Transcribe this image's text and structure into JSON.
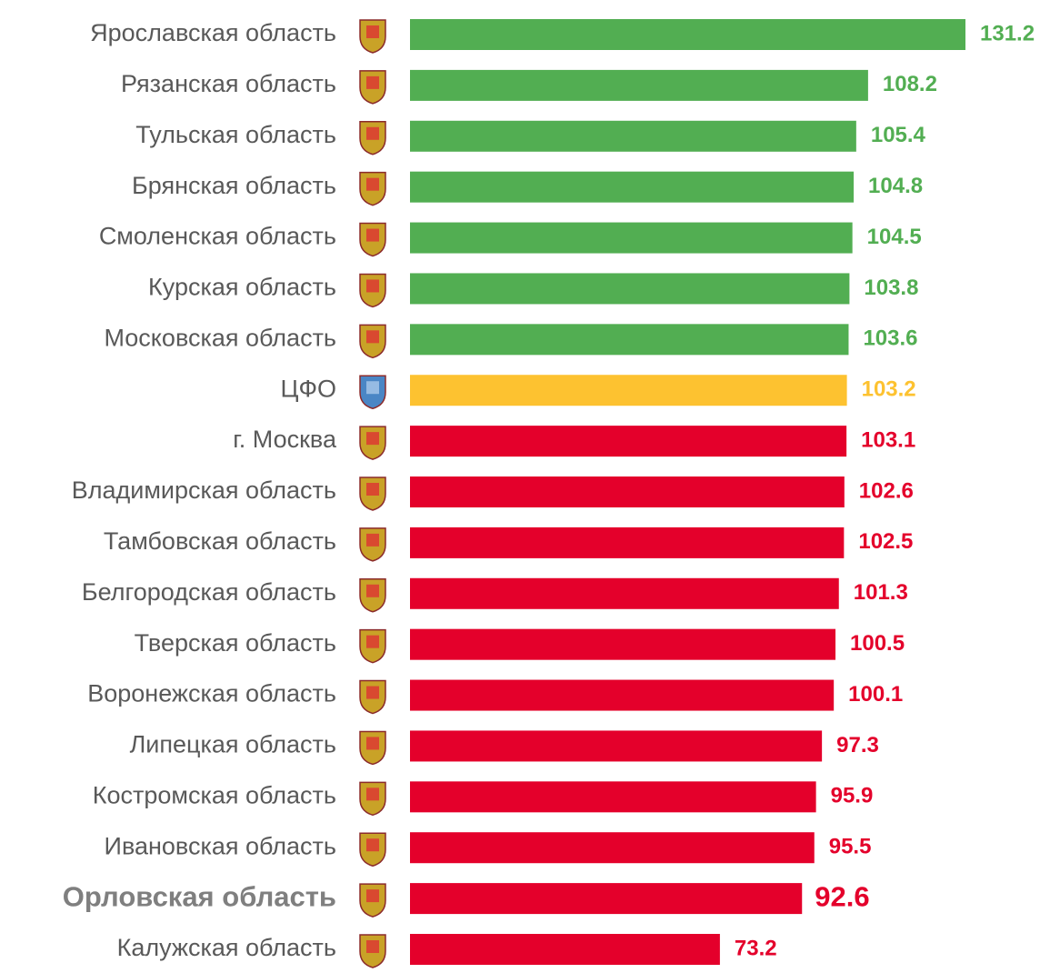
{
  "chart_data": {
    "type": "hbar",
    "categories": [
      "Ярославская область",
      "Рязанская область",
      "Тульская область",
      "Брянская область",
      "Смоленская область",
      "Курская область",
      "Московская область",
      "ЦФО",
      "г. Москва",
      "Владимирская область",
      "Тамбовская область",
      "Белгородская область",
      "Тверская область",
      "Воронежская область",
      "Липецкая область",
      "Костромская область",
      "Ивановская область",
      "Орловская область",
      "Калужская область"
    ],
    "values": [
      131.2,
      108.2,
      105.4,
      104.8,
      104.5,
      103.8,
      103.6,
      103.2,
      103.1,
      102.6,
      102.5,
      101.3,
      100.5,
      100.1,
      97.3,
      95.9,
      95.5,
      92.6,
      73.2
    ],
    "colors": [
      "#52ae52",
      "#52ae52",
      "#52ae52",
      "#52ae52",
      "#52ae52",
      "#52ae52",
      "#52ae52",
      "#fdc230",
      "#e4002b",
      "#e4002b",
      "#e4002b",
      "#e4002b",
      "#e4002b",
      "#e4002b",
      "#e4002b",
      "#e4002b",
      "#e4002b",
      "#e4002b",
      "#e4002b"
    ],
    "highlight": 17
  }
}
